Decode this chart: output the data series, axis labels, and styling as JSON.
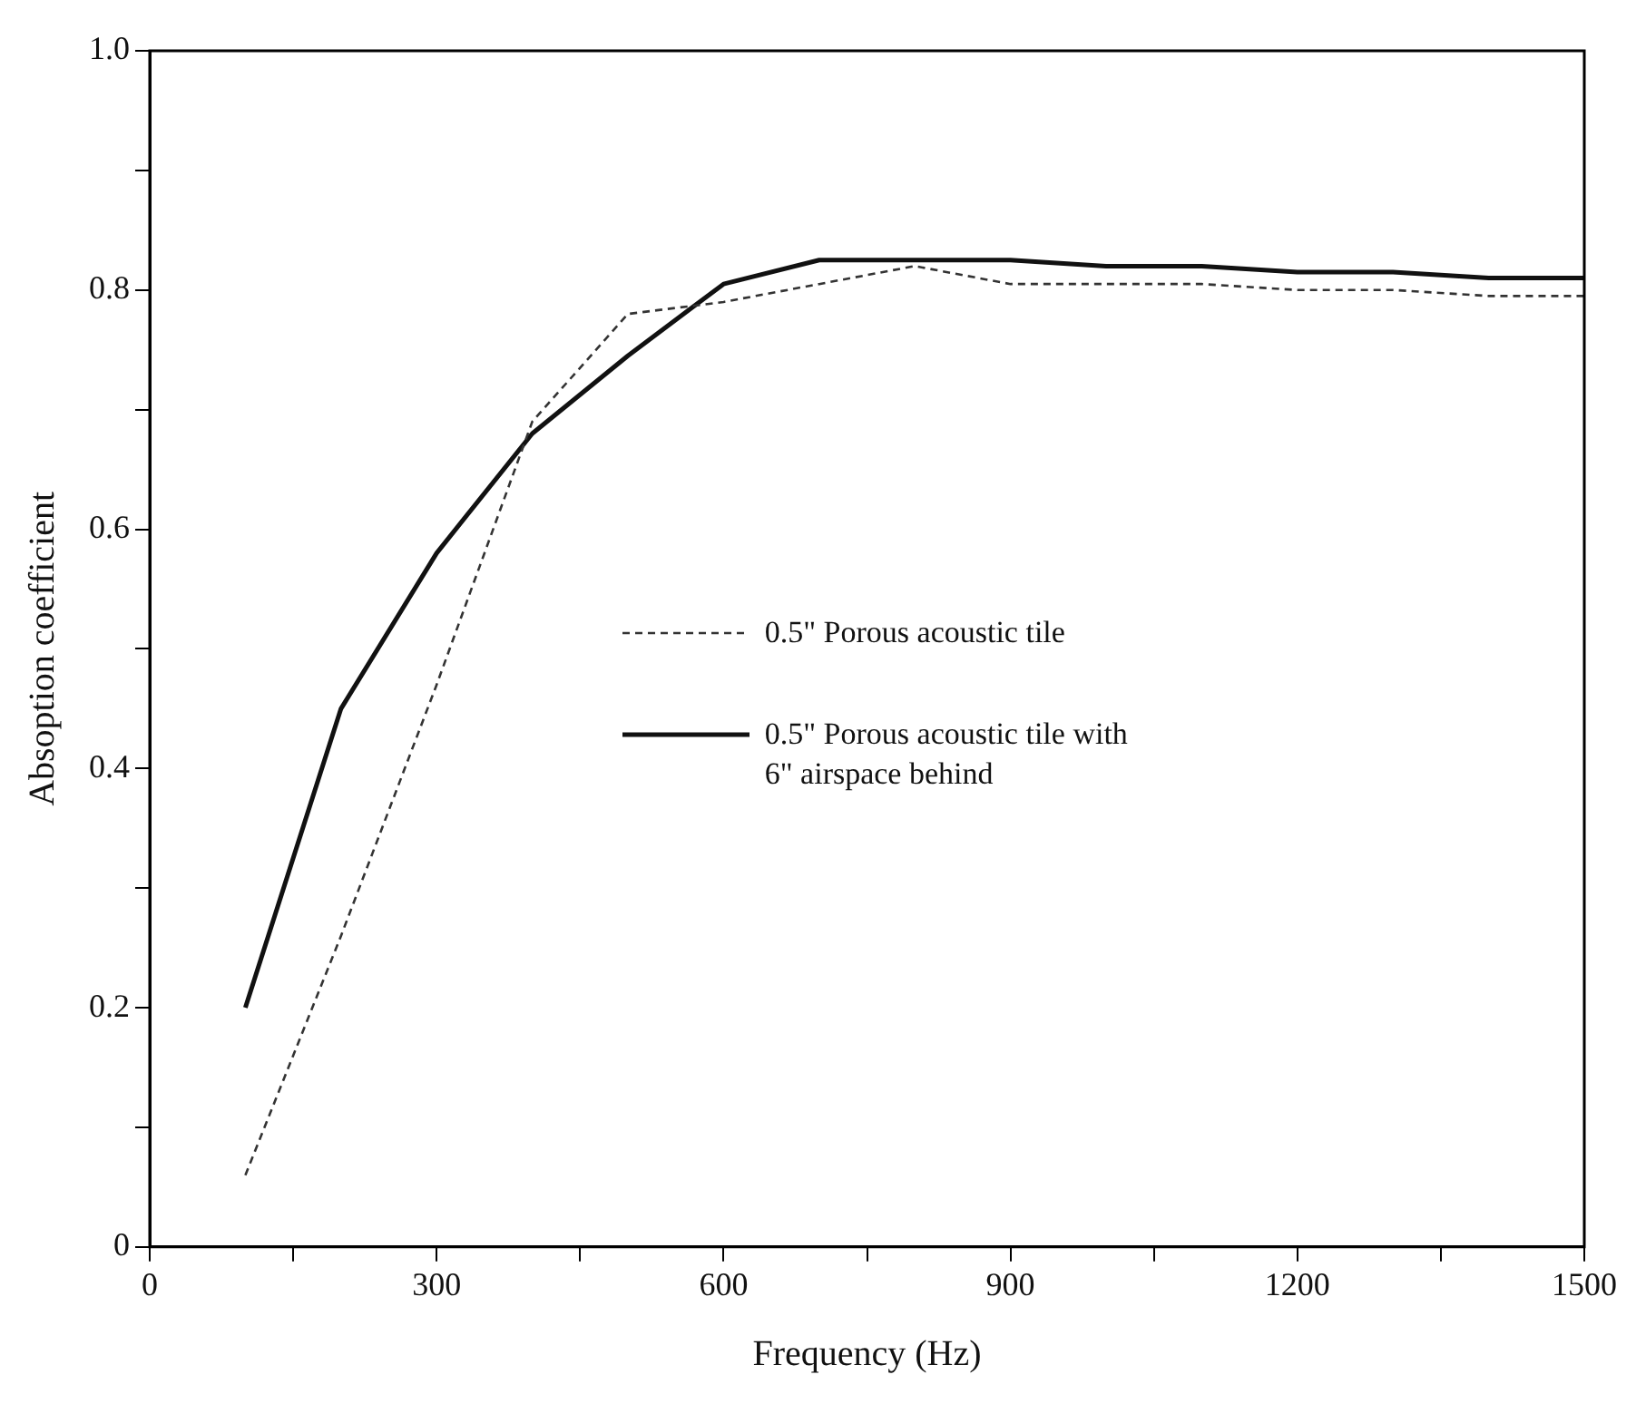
{
  "chart_data": {
    "type": "line",
    "xlabel": "Frequency (Hz)",
    "ylabel": "Absoption coefficient",
    "x": [
      100,
      200,
      300,
      400,
      500,
      600,
      700,
      800,
      900,
      1000,
      1100,
      1200,
      1300,
      1400,
      1500
    ],
    "series": [
      {
        "name": "0.5\" Porous acoustic tile",
        "color": "#333333",
        "line_style": "dashed",
        "values": [
          0.06,
          0.26,
          0.47,
          0.69,
          0.78,
          0.79,
          0.805,
          0.82,
          0.805,
          0.805,
          0.805,
          0.8,
          0.8,
          0.795,
          0.795
        ]
      },
      {
        "name": "0.5\" Porous acoustic tile with 6\" airspace behind",
        "color": "#111111",
        "line_style": "solid",
        "values": [
          0.2,
          0.45,
          0.58,
          0.68,
          0.745,
          0.805,
          0.825,
          0.825,
          0.825,
          0.82,
          0.82,
          0.815,
          0.815,
          0.81,
          0.81
        ]
      }
    ],
    "xlim": [
      0,
      1500
    ],
    "xticks": [
      0,
      {
        "value": 150,
        "label": null
      },
      300,
      {
        "value": 450,
        "label": null
      },
      600,
      {
        "value": 750,
        "label": null
      },
      900,
      {
        "value": 1050,
        "label": null
      },
      1200,
      {
        "value": 1350,
        "label": null
      },
      1500
    ],
    "ylim": [
      0,
      1
    ],
    "yticks": [
      0,
      {
        "value": 0.1,
        "label": null
      },
      0.2,
      {
        "value": 0.3,
        "label": null
      },
      0.4,
      {
        "value": 0.5,
        "label": null
      },
      0.6,
      {
        "value": 0.7,
        "label": null
      },
      0.8,
      {
        "value": 0.9,
        "label": null
      },
      {
        "value": 1,
        "label": "1.0"
      }
    ],
    "grid": false,
    "legend": "right",
    "marker": "none"
  }
}
